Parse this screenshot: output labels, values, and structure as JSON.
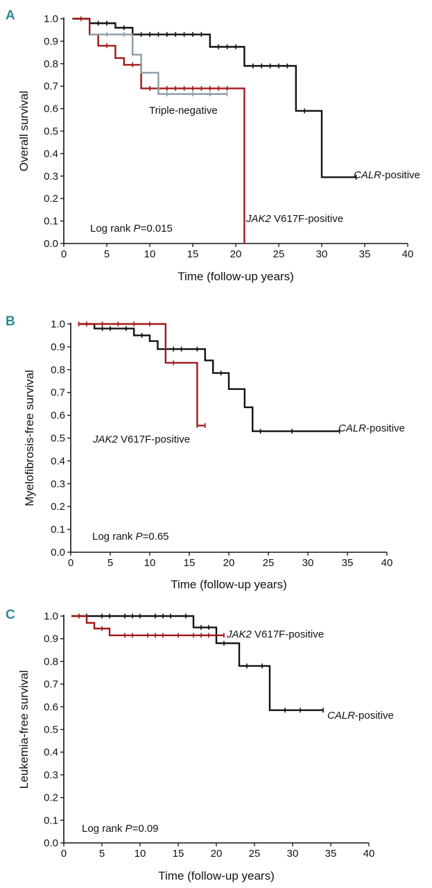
{
  "figure": {
    "colors": {
      "panel_letter": "#2a8a9a",
      "axis": "#111111"
    }
  },
  "chart_data": [
    {
      "panel": "A",
      "type": "line",
      "chart_kind": "kaplan-meier",
      "xlabel": "Time (follow-up years)",
      "ylabel": "Overall survival",
      "xlim": [
        0,
        40
      ],
      "ylim": [
        0,
        1.0
      ],
      "xticks": [
        "0",
        "5",
        "10",
        "15",
        "20",
        "25",
        "30",
        "35",
        "40"
      ],
      "yticks": [
        "0.0",
        "0.1",
        "0.2",
        "0.3",
        "0.4",
        "0.5",
        "0.6",
        "0.7",
        "0.8",
        "0.9",
        "1.0"
      ],
      "grid": false,
      "annotation": {
        "prefix": "Log rank ",
        "p": "P",
        "suffix": "=0.015"
      },
      "series": [
        {
          "name": "CALR-positive",
          "label_em": "CALR",
          "label_rest": "-positive",
          "color": "#111111",
          "points": [
            [
              1,
              1.0
            ],
            [
              3,
              1.0
            ],
            [
              3,
              0.98
            ],
            [
              6,
              0.98
            ],
            [
              6,
              0.96
            ],
            [
              8,
              0.96
            ],
            [
              8,
              0.93
            ],
            [
              17,
              0.93
            ],
            [
              17,
              0.875
            ],
            [
              21,
              0.875
            ],
            [
              21,
              0.79
            ],
            [
              27,
              0.79
            ],
            [
              27,
              0.59
            ],
            [
              30,
              0.59
            ],
            [
              30,
              0.295
            ],
            [
              34,
              0.295
            ]
          ],
          "censors": [
            [
              4,
              0.98
            ],
            [
              5,
              0.98
            ],
            [
              7,
              0.96
            ],
            [
              9,
              0.93
            ],
            [
              10,
              0.93
            ],
            [
              11,
              0.93
            ],
            [
              12,
              0.93
            ],
            [
              13,
              0.93
            ],
            [
              14,
              0.93
            ],
            [
              15,
              0.93
            ],
            [
              16,
              0.93
            ],
            [
              18,
              0.875
            ],
            [
              19,
              0.875
            ],
            [
              20,
              0.875
            ],
            [
              22,
              0.79
            ],
            [
              23,
              0.79
            ],
            [
              24,
              0.79
            ],
            [
              25,
              0.79
            ],
            [
              26,
              0.79
            ],
            [
              28,
              0.59
            ],
            [
              34,
              0.295
            ]
          ]
        },
        {
          "name": "JAK2 V617F-positive",
          "label_em": "JAK2",
          "label_rest": " V617F-positive",
          "color": "#a01818",
          "points": [
            [
              1,
              1.0
            ],
            [
              3,
              1.0
            ],
            [
              3,
              0.93
            ],
            [
              4,
              0.93
            ],
            [
              4,
              0.88
            ],
            [
              6,
              0.88
            ],
            [
              6,
              0.825
            ],
            [
              7,
              0.825
            ],
            [
              7,
              0.795
            ],
            [
              9,
              0.795
            ],
            [
              9,
              0.69
            ],
            [
              21,
              0.69
            ],
            [
              21,
              0.0
            ]
          ],
          "censors": [
            [
              2,
              1.0
            ],
            [
              5,
              0.88
            ],
            [
              8,
              0.795
            ],
            [
              10,
              0.69
            ],
            [
              11,
              0.69
            ],
            [
              12,
              0.69
            ],
            [
              13,
              0.69
            ],
            [
              14,
              0.69
            ],
            [
              15,
              0.69
            ],
            [
              16,
              0.69
            ],
            [
              17,
              0.69
            ],
            [
              18,
              0.69
            ],
            [
              19,
              0.69
            ]
          ]
        },
        {
          "name": "Triple-negative",
          "label_em": "",
          "label_rest": "Triple-negative",
          "color": "#8c9ca4",
          "points": [
            [
              3,
              0.93
            ],
            [
              8,
              0.93
            ],
            [
              8,
              0.84
            ],
            [
              9,
              0.84
            ],
            [
              9,
              0.76
            ],
            [
              11,
              0.76
            ],
            [
              11,
              0.665
            ],
            [
              19,
              0.665
            ]
          ],
          "censors": [
            [
              5,
              0.93
            ],
            [
              7,
              0.93
            ],
            [
              12,
              0.665
            ],
            [
              15,
              0.665
            ],
            [
              17,
              0.665
            ],
            [
              19,
              0.665
            ]
          ]
        }
      ]
    },
    {
      "panel": "B",
      "type": "line",
      "chart_kind": "kaplan-meier",
      "xlabel": "Time (follow-up years)",
      "ylabel": "Myelofibrosis-free survival",
      "xlim": [
        0,
        40
      ],
      "ylim": [
        0,
        1.0
      ],
      "xticks": [
        "0",
        "5",
        "10",
        "15",
        "20",
        "25",
        "30",
        "35",
        "40"
      ],
      "yticks": [
        "0.0",
        "0.1",
        "0.2",
        "0.3",
        "0.4",
        "0.5",
        "0.6",
        "0.7",
        "0.8",
        "0.9",
        "1.0"
      ],
      "grid": false,
      "annotation": {
        "prefix": "Log rank ",
        "p": "P",
        "suffix": "=0.65"
      },
      "series": [
        {
          "name": "CALR-positive",
          "label_em": "CALR",
          "label_rest": "-positive",
          "color": "#111111",
          "points": [
            [
              1,
              1.0
            ],
            [
              3,
              1.0
            ],
            [
              3,
              0.98
            ],
            [
              8,
              0.98
            ],
            [
              8,
              0.95
            ],
            [
              10,
              0.95
            ],
            [
              10,
              0.925
            ],
            [
              11,
              0.925
            ],
            [
              11,
              0.89
            ],
            [
              17,
              0.89
            ],
            [
              17,
              0.84
            ],
            [
              18,
              0.84
            ],
            [
              18,
              0.785
            ],
            [
              20,
              0.785
            ],
            [
              20,
              0.715
            ],
            [
              22,
              0.715
            ],
            [
              22,
              0.635
            ],
            [
              23,
              0.635
            ],
            [
              23,
              0.53
            ],
            [
              34,
              0.53
            ]
          ],
          "censors": [
            [
              4,
              0.98
            ],
            [
              5,
              0.98
            ],
            [
              7,
              0.98
            ],
            [
              9,
              0.95
            ],
            [
              13,
              0.89
            ],
            [
              14,
              0.89
            ],
            [
              16,
              0.89
            ],
            [
              19,
              0.785
            ],
            [
              24,
              0.53
            ],
            [
              28,
              0.53
            ],
            [
              34,
              0.53
            ]
          ]
        },
        {
          "name": "JAK2 V617F-positive",
          "label_em": "JAK2",
          "label_rest": " V617F-positive",
          "color": "#a01818",
          "points": [
            [
              1,
              1.0
            ],
            [
              12,
              1.0
            ],
            [
              12,
              0.83
            ],
            [
              16,
              0.83
            ],
            [
              16,
              0.555
            ],
            [
              17,
              0.555
            ]
          ],
          "censors": [
            [
              1,
              1.0
            ],
            [
              2,
              1.0
            ],
            [
              4,
              1.0
            ],
            [
              6,
              1.0
            ],
            [
              8,
              1.0
            ],
            [
              10,
              1.0
            ],
            [
              13,
              0.83
            ],
            [
              16,
              0.555
            ],
            [
              17,
              0.555
            ]
          ]
        }
      ]
    },
    {
      "panel": "C",
      "type": "line",
      "chart_kind": "kaplan-meier",
      "xlabel": "Time (follow-up years)",
      "ylabel": "Leukemia-free survival",
      "xlim": [
        0,
        40
      ],
      "ylim": [
        0,
        1.0
      ],
      "xticks": [
        "0",
        "5",
        "10",
        "15",
        "20",
        "25",
        "30",
        "35",
        "40"
      ],
      "yticks": [
        "0.0",
        "0.1",
        "0.2",
        "0.3",
        "0.4",
        "0.5",
        "0.6",
        "0.7",
        "0.8",
        "0.9",
        "1.0"
      ],
      "grid": false,
      "annotation": {
        "prefix": "Log rank ",
        "p": "P",
        "suffix": "=0.09"
      },
      "series": [
        {
          "name": "CALR-positive",
          "label_em": "CALR",
          "label_rest": "-positive",
          "color": "#111111",
          "points": [
            [
              1,
              1.0
            ],
            [
              17,
              1.0
            ],
            [
              17,
              0.95
            ],
            [
              20,
              0.95
            ],
            [
              20,
              0.88
            ],
            [
              23,
              0.88
            ],
            [
              23,
              0.78
            ],
            [
              27,
              0.78
            ],
            [
              27,
              0.585
            ],
            [
              34,
              0.585
            ]
          ],
          "censors": [
            [
              3,
              1.0
            ],
            [
              5,
              1.0
            ],
            [
              6,
              1.0
            ],
            [
              8,
              1.0
            ],
            [
              9,
              1.0
            ],
            [
              10,
              1.0
            ],
            [
              12,
              1.0
            ],
            [
              13,
              1.0
            ],
            [
              14,
              1.0
            ],
            [
              16,
              1.0
            ],
            [
              18,
              0.95
            ],
            [
              19,
              0.95
            ],
            [
              21,
              0.88
            ],
            [
              24,
              0.78
            ],
            [
              26,
              0.78
            ],
            [
              29,
              0.585
            ],
            [
              31,
              0.585
            ],
            [
              34,
              0.585
            ]
          ]
        },
        {
          "name": "JAK2 V617F-positive",
          "label_em": "JAK2",
          "label_rest": " V617F-positive",
          "color": "#a01818",
          "points": [
            [
              1,
              1.0
            ],
            [
              3,
              1.0
            ],
            [
              3,
              0.97
            ],
            [
              4,
              0.97
            ],
            [
              4,
              0.945
            ],
            [
              6,
              0.945
            ],
            [
              6,
              0.915
            ],
            [
              21,
              0.915
            ]
          ],
          "censors": [
            [
              2,
              1.0
            ],
            [
              5,
              0.945
            ],
            [
              8,
              0.915
            ],
            [
              9,
              0.915
            ],
            [
              11,
              0.915
            ],
            [
              12,
              0.915
            ],
            [
              13,
              0.915
            ],
            [
              15,
              0.915
            ],
            [
              17,
              0.915
            ],
            [
              18,
              0.915
            ],
            [
              19,
              0.915
            ],
            [
              21,
              0.915
            ]
          ]
        }
      ]
    }
  ]
}
